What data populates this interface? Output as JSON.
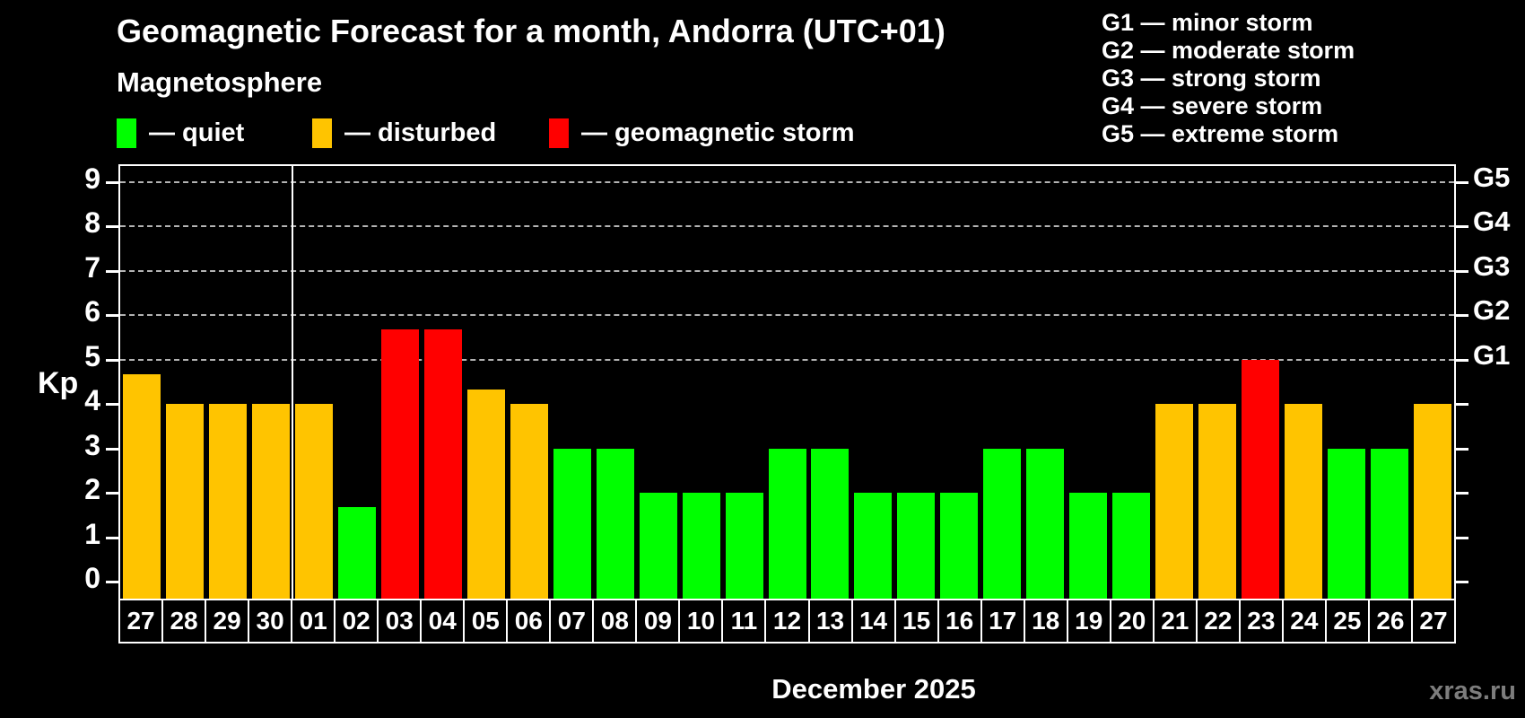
{
  "title": "Geomagnetic Forecast for a month, Andorra (UTC+01)",
  "subtitle": "Magnetosphere",
  "legend": {
    "quiet": {
      "label": "— quiet",
      "color": "#00ff00"
    },
    "disturbed": {
      "label": "— disturbed",
      "color": "#ffc400"
    },
    "storm": {
      "label": "— geomagnetic storm",
      "color": "#ff0000"
    }
  },
  "storm_scale_legend": [
    "G1 — minor storm",
    "G2 — moderate storm",
    "G3 — strong storm",
    "G4 — severe storm",
    "G5 — extreme storm"
  ],
  "watermark": "xras.ru",
  "chart_data": {
    "type": "bar",
    "title": "Geomagnetic Forecast for a month, Andorra (UTC+01)",
    "ylabel": "Kp",
    "xlabel": "December 2025",
    "x_tick_labels": [
      "27",
      "28",
      "29",
      "30",
      "01",
      "02",
      "03",
      "04",
      "05",
      "06",
      "07",
      "08",
      "09",
      "10",
      "11",
      "12",
      "13",
      "14",
      "15",
      "16",
      "17",
      "18",
      "19",
      "20",
      "21",
      "22",
      "23",
      "24",
      "25",
      "26",
      "27"
    ],
    "values": [
      4.67,
      4,
      4,
      4,
      4,
      1.67,
      5.67,
      5.67,
      4.33,
      4,
      3,
      3,
      2,
      2,
      2,
      3,
      3,
      2,
      2,
      2,
      3,
      3,
      2,
      2,
      4,
      4,
      5,
      4,
      3,
      3,
      4
    ],
    "states": [
      "disturbed",
      "disturbed",
      "disturbed",
      "disturbed",
      "disturbed",
      "quiet",
      "storm",
      "storm",
      "disturbed",
      "disturbed",
      "quiet",
      "quiet",
      "quiet",
      "quiet",
      "quiet",
      "quiet",
      "quiet",
      "quiet",
      "quiet",
      "quiet",
      "quiet",
      "quiet",
      "quiet",
      "quiet",
      "disturbed",
      "disturbed",
      "storm",
      "disturbed",
      "quiet",
      "quiet",
      "disturbed"
    ],
    "colors": {
      "quiet": "#00ff00",
      "disturbed": "#ffc400",
      "storm": "#ff0000"
    },
    "ylim": [
      -0.4,
      9.4
    ],
    "yticks": [
      0,
      1,
      2,
      3,
      4,
      5,
      6,
      7,
      8,
      9
    ],
    "gridlines_at": [
      5,
      6,
      7,
      8,
      9
    ],
    "right_axis_labels": [
      {
        "kp": 5,
        "label": "G1"
      },
      {
        "kp": 6,
        "label": "G2"
      },
      {
        "kp": 7,
        "label": "G3"
      },
      {
        "kp": 8,
        "label": "G4"
      },
      {
        "kp": 9,
        "label": "G5"
      }
    ],
    "month_separator_after_index": 3,
    "legend_position": "top",
    "grid": "dashed horizontal at storm levels"
  }
}
